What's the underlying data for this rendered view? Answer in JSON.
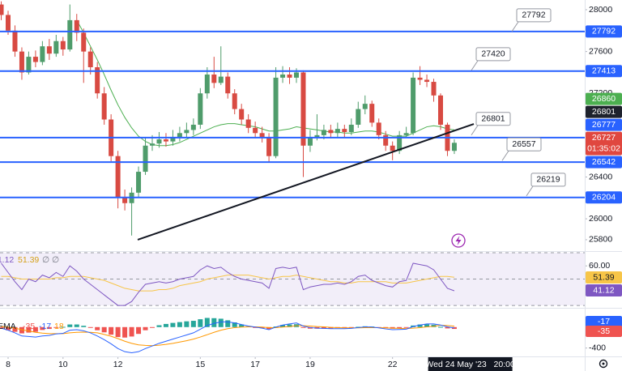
{
  "chart_data": {
    "type": "candlestick",
    "x": [
      7.75,
      8,
      8.25,
      8.5,
      8.75,
      9,
      9.25,
      9.5,
      9.75,
      10,
      10.25,
      10.5,
      10.75,
      11,
      11.25,
      11.5,
      11.75,
      12,
      12.25,
      12.5,
      12.75,
      13,
      13.25,
      13.5,
      13.75,
      14,
      14.25,
      14.5,
      14.75,
      15,
      15.25,
      15.5,
      15.75,
      16,
      16.25,
      16.5,
      16.75,
      17,
      17.25,
      17.5,
      17.75,
      18,
      18.25,
      18.5,
      18.75,
      19,
      19.25,
      19.5,
      19.75,
      20,
      20.25,
      20.5,
      20.75,
      21,
      21.25,
      21.5,
      21.75,
      22,
      22.25,
      22.5,
      22.75,
      23,
      23.25,
      23.5,
      23.75,
      24,
      24.25
    ],
    "open": [
      28050,
      27950,
      27800,
      27600,
      27400,
      27550,
      27500,
      27650,
      27580,
      27700,
      27620,
      27900,
      27780,
      27600,
      27450,
      27200,
      26950,
      26600,
      26200,
      26150,
      26250,
      26450,
      26700,
      26720,
      26760,
      26740,
      26780,
      26820,
      26850,
      26900,
      27200,
      27380,
      27300,
      27360,
      27200,
      27050,
      26950,
      26870,
      26820,
      26780,
      26600,
      27350,
      27380,
      27350,
      27400,
      26700,
      26780,
      26800,
      26850,
      26820,
      26860,
      26830,
      26900,
      27050,
      27100,
      26920,
      26800,
      26700,
      26650,
      26800,
      26820,
      27350,
      27330,
      27310,
      27180,
      26900,
      26650
    ],
    "high": [
      28080,
      27990,
      27850,
      27640,
      27600,
      27610,
      27700,
      27720,
      27760,
      27740,
      28050,
      27960,
      27820,
      27640,
      27500,
      27260,
      27000,
      26650,
      26280,
      26300,
      26500,
      26780,
      26800,
      26830,
      26820,
      26850,
      26880,
      26920,
      26960,
      27250,
      27450,
      27550,
      27650,
      27400,
      27240,
      27100,
      27000,
      26930,
      26880,
      26820,
      27450,
      27460,
      27450,
      27440,
      27420,
      26850,
      27000,
      26900,
      26900,
      26920,
      26900,
      26960,
      27120,
      27180,
      27130,
      26960,
      26840,
      26740,
      26840,
      26880,
      27400,
      27460,
      27380,
      27340,
      27200,
      26920,
      26760
    ],
    "low": [
      27900,
      27760,
      27550,
      27330,
      27380,
      27450,
      27470,
      27520,
      27550,
      27560,
      27600,
      27700,
      27300,
      27380,
      27150,
      26900,
      26550,
      26100,
      26080,
      25840,
      26200,
      26420,
      26650,
      26680,
      26690,
      26700,
      26740,
      26780,
      26800,
      26860,
      27150,
      27250,
      27280,
      27150,
      27000,
      26900,
      26820,
      26770,
      26730,
      26540,
      26580,
      27300,
      27290,
      27300,
      26400,
      26640,
      26750,
      26760,
      26770,
      26780,
      26780,
      26800,
      26870,
      27000,
      26880,
      26760,
      26650,
      26560,
      26620,
      26780,
      26800,
      27280,
      27260,
      27120,
      26850,
      26600,
      26620
    ],
    "close": [
      27950,
      27800,
      27600,
      27400,
      27550,
      27500,
      27650,
      27580,
      27700,
      27620,
      27900,
      27780,
      27600,
      27450,
      27200,
      26950,
      26600,
      26200,
      26150,
      26250,
      26450,
      26700,
      26720,
      26760,
      26740,
      26780,
      26820,
      26850,
      26900,
      27200,
      27380,
      27300,
      27360,
      27200,
      27050,
      26950,
      26870,
      26820,
      26780,
      26600,
      27350,
      27380,
      27350,
      27400,
      26700,
      26780,
      26800,
      26850,
      26820,
      26860,
      26830,
      26900,
      27050,
      27100,
      26920,
      26800,
      26700,
      26650,
      26800,
      26820,
      27350,
      27330,
      27310,
      27180,
      26900,
      26650,
      26727
    ],
    "up_color": "#4f9c6b",
    "down_color": "#d84a42",
    "xlim": [
      7.705,
      29.0
    ],
    "xticks": [
      8,
      10,
      12,
      15,
      17,
      19,
      22
    ],
    "ylim": [
      25691,
      28093
    ],
    "yticks": [
      25800,
      26000,
      26400,
      27200,
      27600,
      28000
    ],
    "ma": {
      "color": "#4caf50",
      "values": [
        null,
        null,
        null,
        null,
        null,
        null,
        null,
        null,
        null,
        null,
        null,
        27900,
        27780,
        27650,
        27520,
        27380,
        27230,
        27090,
        26970,
        26870,
        26790,
        26740,
        26710,
        26700,
        26700,
        26710,
        26730,
        26760,
        26790,
        26820,
        26850,
        26880,
        26900,
        26910,
        26910,
        26900,
        26890,
        26880,
        26860,
        26840,
        26840,
        26850,
        26860,
        26880,
        26870,
        26860,
        26850,
        26840,
        26830,
        26830,
        26820,
        26820,
        26830,
        26840,
        26840,
        26830,
        26810,
        26790,
        26790,
        26790,
        26820,
        26850,
        26880,
        26890,
        26880,
        26860,
        26850
      ]
    },
    "levels": {
      "color": "#2962ff",
      "values": [
        27792,
        27413,
        26777,
        26542,
        26204
      ]
    },
    "callouts": [
      27792,
      27420,
      26801,
      26557,
      26219
    ],
    "trendline": {
      "x": [
        12.72,
        24.96
      ],
      "y": [
        25800,
        26907
      ],
      "color": "#131722"
    },
    "price_badges": [
      {
        "value": 27792,
        "color": "#2962ff"
      },
      {
        "value": 27413,
        "color": "#2962ff"
      },
      {
        "value": 26860,
        "color": "#4caf50"
      },
      {
        "value": 26801,
        "color": "#1e222d"
      },
      {
        "value": 26777,
        "color": "#2962ff"
      },
      {
        "value": 26727,
        "color": "#e0473f",
        "note": "01:35:02"
      },
      {
        "value": 26542,
        "color": "#2962ff"
      },
      {
        "value": 26204,
        "color": "#2962ff"
      }
    ],
    "crosshair": {
      "x": 24.83,
      "label": "Wed 24 May '23   20:00"
    },
    "rsi": {
      "ylim": [
        28.2,
        71.2
      ],
      "yticks": [
        {
          "value": 60,
          "label": "60.00"
        }
      ],
      "band": [
        30,
        70
      ],
      "midline": 50,
      "header_extra": [
        "∅",
        "∅"
      ],
      "color": "#7e57c2",
      "values": [
        62,
        55,
        48,
        42,
        50,
        48,
        53,
        51,
        55,
        52,
        60,
        56,
        50,
        46,
        42,
        38,
        34,
        30,
        30,
        33,
        40,
        46,
        47,
        48,
        47,
        48,
        50,
        51,
        52,
        57,
        60,
        58,
        59,
        55,
        52,
        50,
        49,
        48,
        47,
        43,
        58,
        59,
        58,
        59,
        42,
        44,
        45,
        46,
        46,
        47,
        46,
        48,
        52,
        53,
        49,
        47,
        45,
        44,
        48,
        49,
        62,
        61,
        60,
        57,
        50,
        43,
        41.12
      ],
      "ma_color": "#f7c548",
      "ma_values": [
        52,
        52,
        51,
        50,
        50,
        50,
        50,
        50,
        51,
        51,
        52,
        52,
        52,
        51,
        50,
        49,
        47,
        45,
        43,
        42,
        41,
        41,
        41,
        42,
        42,
        43,
        45,
        46,
        47,
        48,
        50,
        51,
        52,
        53,
        53,
        53,
        53,
        52,
        51,
        50,
        51,
        52,
        52,
        53,
        52,
        51,
        50,
        49,
        48,
        48,
        47,
        47,
        48,
        48,
        48,
        48,
        48,
        47,
        47,
        47,
        48,
        49,
        50,
        51,
        52,
        52,
        51.39
      ]
    },
    "macd": {
      "header_label": "EMA",
      "ylim": [
        -560,
        368
      ],
      "yticks": [
        -400
      ],
      "macd_color": "#2962ff",
      "signal_color": "#ff9800",
      "hist_up_color": "#26a69a",
      "hist_down_color": "#ef5350",
      "macd_values": [
        -20,
        -60,
        -110,
        -170,
        -180,
        -190,
        -170,
        -160,
        -130,
        -120,
        -60,
        -50,
        -70,
        -110,
        -170,
        -240,
        -320,
        -410,
        -470,
        -490,
        -470,
        -410,
        -360,
        -310,
        -270,
        -230,
        -190,
        -150,
        -110,
        -40,
        30,
        70,
        100,
        100,
        80,
        50,
        20,
        0,
        -20,
        -50,
        0,
        40,
        60,
        80,
        20,
        -10,
        -20,
        -25,
        -30,
        -30,
        -30,
        -25,
        -10,
        5,
        0,
        -15,
        -35,
        -50,
        -45,
        -40,
        10,
        40,
        60,
        60,
        40,
        5,
        -17
      ],
      "signal_values": [
        10,
        0,
        -20,
        -50,
        -75,
        -100,
        -115,
        -125,
        -125,
        -125,
        -110,
        -100,
        -95,
        -100,
        -110,
        -140,
        -175,
        -220,
        -270,
        -310,
        -340,
        -350,
        -355,
        -345,
        -330,
        -310,
        -285,
        -260,
        -230,
        -190,
        -145,
        -100,
        -60,
        -30,
        -10,
        0,
        5,
        5,
        0,
        -10,
        -10,
        0,
        10,
        25,
        25,
        20,
        10,
        5,
        -5,
        -10,
        -15,
        -15,
        -15,
        -10,
        -10,
        -10,
        -15,
        -20,
        -25,
        -30,
        -20,
        -10,
        5,
        15,
        35,
        30,
        18
      ],
      "hist_values": [
        -30,
        -60,
        -90,
        -120,
        -105,
        -90,
        -55,
        -35,
        -5,
        5,
        50,
        50,
        25,
        -10,
        -60,
        -100,
        -145,
        -190,
        -200,
        -180,
        -130,
        -60,
        -5,
        35,
        60,
        80,
        95,
        110,
        120,
        150,
        175,
        170,
        160,
        130,
        90,
        50,
        15,
        -5,
        -20,
        -40,
        10,
        40,
        50,
        55,
        -5,
        -30,
        -30,
        -30,
        -25,
        -20,
        -15,
        -10,
        5,
        15,
        10,
        -5,
        -20,
        -30,
        -20,
        -10,
        30,
        50,
        55,
        45,
        5,
        -25,
        -35
      ]
    }
  }
}
